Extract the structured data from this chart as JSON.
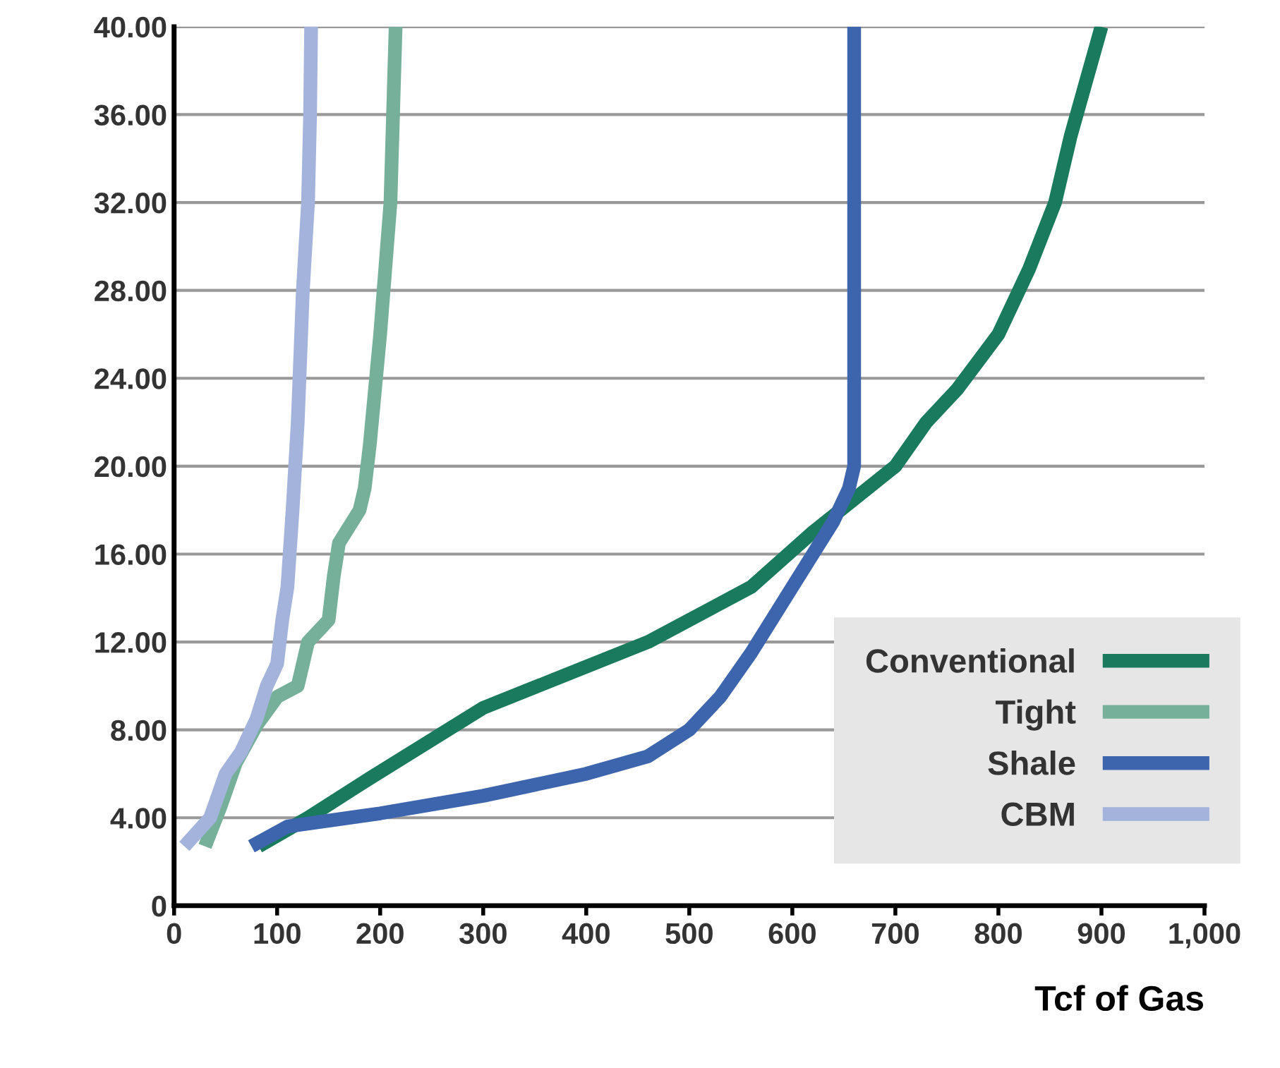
{
  "chart_data": {
    "type": "line",
    "xlabel": "Tcf of Gas",
    "xlim": [
      0,
      1000
    ],
    "ylim": [
      0,
      40
    ],
    "xticks": [
      0,
      100,
      200,
      300,
      400,
      500,
      600,
      700,
      800,
      900,
      {
        "value": 1000,
        "label": "1,000"
      }
    ],
    "yticks": [
      0,
      {
        "value": 4,
        "label": "4.00"
      },
      {
        "value": 8,
        "label": "8.00"
      },
      {
        "value": 12,
        "label": "12.00"
      },
      {
        "value": 16,
        "label": "16.00"
      },
      {
        "value": 20,
        "label": "20.00"
      },
      {
        "value": 24,
        "label": "24.00"
      },
      {
        "value": 28,
        "label": "28.00"
      },
      {
        "value": 32,
        "label": "32.00"
      },
      {
        "value": 36,
        "label": "36.00"
      },
      {
        "value": 40,
        "label": "40.00"
      }
    ],
    "grid": "y",
    "legend": "bottom right",
    "marker": "none",
    "line_style": "solid",
    "series": [
      {
        "name": "Conventional",
        "color": "#1a7a5e",
        "x": [
          82,
          130,
          190,
          300,
          380,
          460,
          560,
          620,
          660,
          700,
          730,
          760,
          800,
          830,
          855,
          870,
          885,
          900
        ],
        "values": [
          2.7,
          4,
          5.8,
          9,
          10.5,
          12,
          14.5,
          17,
          18.5,
          20,
          22,
          23.5,
          26,
          29,
          32,
          35,
          37.5,
          40
        ]
      },
      {
        "name": "Tight",
        "color": "#76b09a",
        "x": [
          30,
          45,
          60,
          80,
          100,
          120,
          125,
          130,
          150,
          155,
          160,
          180,
          185,
          190,
          200,
          210,
          215
        ],
        "values": [
          2.7,
          4.5,
          6.5,
          8.2,
          9.5,
          10,
          11,
          12,
          13,
          15,
          16.5,
          18,
          19,
          21,
          26,
          32,
          40
        ]
      },
      {
        "name": "Shale",
        "color": "#3d65ad",
        "x": [
          75,
          110,
          200,
          300,
          400,
          460,
          500,
          530,
          560,
          600,
          640,
          655,
          660,
          660
        ],
        "values": [
          2.7,
          3.6,
          4.2,
          5,
          6,
          6.8,
          8,
          9.5,
          11.5,
          14.5,
          17.5,
          19,
          20,
          40
        ]
      },
      {
        "name": "CBM",
        "color": "#a3b3dc",
        "x": [
          10,
          35,
          50,
          65,
          80,
          90,
          100,
          105,
          110,
          115,
          120,
          125,
          130,
          132,
          133
        ],
        "values": [
          2.7,
          4,
          6,
          7,
          8.5,
          10,
          11,
          13,
          14.5,
          18,
          22,
          28,
          32,
          36,
          40
        ]
      }
    ]
  }
}
